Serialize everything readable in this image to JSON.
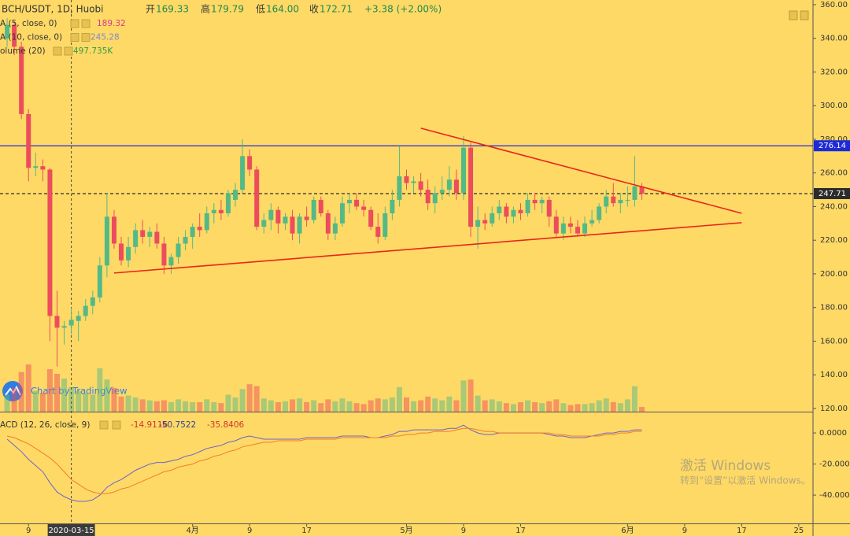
{
  "chart_data": {
    "type": "candlestick",
    "title": "BCH/USDT, 1D, Huobi",
    "ohlc_legend": [
      {
        "label": "开",
        "value": "169.33"
      },
      {
        "label": "高",
        "value": "179.79"
      },
      {
        "label": "低",
        "value": "164.00"
      },
      {
        "label": "收",
        "value": "172.71"
      }
    ],
    "change": "+3.38 (+2.00%)",
    "indicators": [
      {
        "name": "A (5, close, 0)",
        "value": "189.32",
        "color": "#d63c84"
      },
      {
        "name": "A (10, close, 0)",
        "value": "245.28",
        "color": "#7e8bc9"
      },
      {
        "name": "olume (20)",
        "value": "497.735K",
        "color": "#2ea043"
      }
    ],
    "macd_legend": {
      "name": "ACD (12, 26, close, 9)",
      "values": [
        "-14.9116",
        "-50.7522",
        "-35.8406"
      ],
      "colors": [
        "#d0342c",
        "#2c3e9c",
        "#d0342c"
      ]
    },
    "x": [
      "2020-03-06",
      "2020-03-07",
      "2020-03-08",
      "2020-03-09",
      "2020-03-10",
      "2020-03-11",
      "2020-03-12",
      "2020-03-13",
      "2020-03-14",
      "2020-03-15",
      "2020-03-16",
      "2020-03-17",
      "2020-03-18",
      "2020-03-19",
      "2020-03-20",
      "2020-03-21",
      "2020-03-22",
      "2020-03-23",
      "2020-03-24",
      "2020-03-25",
      "2020-03-26",
      "2020-03-27",
      "2020-03-28",
      "2020-03-29",
      "2020-03-30",
      "2020-03-31",
      "2020-04-01",
      "2020-04-02",
      "2020-04-03",
      "2020-04-04",
      "2020-04-05",
      "2020-04-06",
      "2020-04-07",
      "2020-04-08",
      "2020-04-09",
      "2020-04-10",
      "2020-04-11",
      "2020-04-12",
      "2020-04-13",
      "2020-04-14",
      "2020-04-15",
      "2020-04-16",
      "2020-04-17",
      "2020-04-18",
      "2020-04-19",
      "2020-04-20",
      "2020-04-21",
      "2020-04-22",
      "2020-04-23",
      "2020-04-24",
      "2020-04-25",
      "2020-04-26",
      "2020-04-27",
      "2020-04-28",
      "2020-04-29",
      "2020-04-30",
      "2020-05-01",
      "2020-05-02",
      "2020-05-03",
      "2020-05-04",
      "2020-05-05",
      "2020-05-06",
      "2020-05-07",
      "2020-05-08",
      "2020-05-09",
      "2020-05-10",
      "2020-05-11",
      "2020-05-12",
      "2020-05-13",
      "2020-05-14",
      "2020-05-15",
      "2020-05-16",
      "2020-05-17",
      "2020-05-18",
      "2020-05-19",
      "2020-05-20",
      "2020-05-21",
      "2020-05-22",
      "2020-05-23",
      "2020-05-24",
      "2020-05-25",
      "2020-05-26",
      "2020-05-27",
      "2020-05-28",
      "2020-05-29",
      "2020-05-30",
      "2020-05-31",
      "2020-06-01",
      "2020-06-02",
      "2020-06-03"
    ],
    "open": [
      340,
      348,
      335,
      295,
      263,
      264,
      262,
      175,
      168,
      169.33,
      172,
      175,
      181,
      186,
      205,
      234,
      218,
      208,
      216,
      226,
      222,
      225,
      218,
      205,
      210,
      218,
      222,
      228,
      226,
      236,
      238,
      236,
      244,
      250,
      270,
      262,
      228,
      232,
      238,
      230,
      234,
      224,
      234,
      232,
      244,
      236,
      224,
      230,
      242,
      244,
      240,
      238,
      228,
      222,
      236,
      244,
      258,
      254,
      255,
      250,
      242,
      248,
      250,
      256,
      248,
      275,
      228,
      232,
      230,
      236,
      240,
      234,
      238,
      236,
      244,
      242,
      244,
      234,
      224,
      230,
      228,
      224,
      230,
      232,
      240,
      246,
      242,
      244,
      244,
      252
    ],
    "high": [
      352,
      350,
      338,
      298,
      272,
      268,
      263,
      190,
      172,
      179.79,
      178,
      185,
      190,
      210,
      248,
      238,
      222,
      222,
      230,
      232,
      228,
      230,
      222,
      212,
      222,
      226,
      230,
      236,
      240,
      242,
      244,
      250,
      254,
      280,
      274,
      264,
      236,
      242,
      240,
      236,
      238,
      236,
      240,
      246,
      246,
      238,
      234,
      246,
      248,
      248,
      244,
      240,
      236,
      240,
      250,
      276,
      262,
      258,
      260,
      256,
      252,
      258,
      264,
      262,
      282,
      278,
      240,
      236,
      240,
      244,
      242,
      240,
      242,
      248,
      248,
      246,
      246,
      238,
      234,
      234,
      232,
      234,
      238,
      242,
      250,
      254,
      248,
      252,
      270,
      254
    ],
    "low": [
      335,
      330,
      292,
      255,
      258,
      255,
      160,
      145,
      158,
      164.0,
      160,
      172,
      176,
      183,
      198,
      215,
      205,
      204,
      212,
      218,
      216,
      215,
      200,
      200,
      206,
      214,
      215,
      222,
      224,
      230,
      232,
      234,
      240,
      248,
      258,
      226,
      224,
      226,
      224,
      226,
      220,
      218,
      228,
      230,
      234,
      220,
      220,
      228,
      236,
      238,
      234,
      226,
      218,
      220,
      232,
      240,
      250,
      248,
      246,
      238,
      236,
      244,
      246,
      244,
      244,
      222,
      215,
      226,
      228,
      232,
      230,
      230,
      232,
      234,
      238,
      236,
      228,
      222,
      220,
      224,
      222,
      222,
      228,
      230,
      236,
      240,
      236,
      240,
      240,
      244
    ],
    "close": [
      348,
      335,
      295,
      263,
      264,
      262,
      175,
      168,
      169,
      172.71,
      175,
      181,
      186,
      205,
      234,
      218,
      208,
      216,
      226,
      222,
      225,
      218,
      205,
      210,
      218,
      222,
      228,
      226,
      236,
      238,
      236,
      248,
      250,
      270,
      262,
      228,
      232,
      238,
      230,
      234,
      224,
      234,
      232,
      244,
      236,
      224,
      230,
      242,
      244,
      240,
      238,
      228,
      222,
      236,
      244,
      258,
      254,
      255,
      250,
      242,
      248,
      250,
      256,
      248,
      275,
      228,
      232,
      230,
      236,
      240,
      234,
      238,
      236,
      244,
      242,
      244,
      234,
      224,
      230,
      228,
      224,
      230,
      232,
      240,
      246,
      242,
      244,
      244,
      252,
      247.71
    ],
    "volume": [
      1800,
      2500,
      4200,
      5000,
      2200,
      2000,
      4500,
      4000,
      3500,
      2600,
      2200,
      2000,
      1800,
      4600,
      3400,
      2500,
      1600,
      1700,
      1500,
      1300,
      1200,
      1100,
      1200,
      1000,
      1300,
      1100,
      1000,
      1000,
      1300,
      1000,
      900,
      1800,
      1500,
      2400,
      2900,
      2700,
      1400,
      1200,
      1000,
      1100,
      1300,
      1400,
      1000,
      1200,
      900,
      1300,
      1100,
      1400,
      1100,
      900,
      800,
      1200,
      1400,
      1300,
      1500,
      2600,
      1500,
      1100,
      1200,
      1600,
      1400,
      1200,
      1600,
      1200,
      3300,
      3400,
      1700,
      1200,
      1300,
      1100,
      900,
      800,
      1000,
      1200,
      1000,
      900,
      1100,
      1300,
      900,
      700,
      800,
      800,
      900,
      1200,
      1400,
      1000,
      900,
      1300,
      2700,
      497.735
    ],
    "macd": [
      -4,
      -8,
      -12,
      -17,
      -21,
      -25,
      -32,
      -38,
      -41,
      -43,
      -44,
      -44,
      -43,
      -40,
      -35,
      -32,
      -30,
      -27,
      -24,
      -22,
      -20,
      -19,
      -19,
      -18,
      -17,
      -15,
      -14,
      -12,
      -10,
      -9,
      -8,
      -6,
      -5,
      -3,
      -2,
      -3,
      -4,
      -4,
      -4,
      -4,
      -4,
      -4,
      -3,
      -3,
      -3,
      -3,
      -3,
      -2,
      -2,
      -2,
      -2,
      -3,
      -3,
      -2,
      -1,
      1,
      1,
      2,
      2,
      2,
      2,
      2,
      3,
      3,
      5,
      2,
      0,
      -1,
      -1,
      0,
      0,
      0,
      0,
      0,
      0,
      0,
      -1,
      -2,
      -2,
      -3,
      -3,
      -3,
      -2,
      -1,
      0,
      0,
      1,
      1,
      2,
      2
    ],
    "signal": [
      -2,
      -3,
      -5,
      -7,
      -10,
      -13,
      -16,
      -20,
      -25,
      -30,
      -33,
      -36,
      -38,
      -39,
      -39,
      -38,
      -36,
      -35,
      -33,
      -31,
      -29,
      -27,
      -25,
      -24,
      -22,
      -21,
      -20,
      -18,
      -17,
      -15,
      -14,
      -12,
      -11,
      -9,
      -8,
      -7,
      -6,
      -6,
      -5,
      -5,
      -5,
      -5,
      -4,
      -4,
      -4,
      -4,
      -4,
      -3,
      -3,
      -3,
      -3,
      -3,
      -3,
      -3,
      -2,
      -2,
      -1,
      -1,
      0,
      0,
      1,
      1,
      1,
      2,
      3,
      3,
      2,
      1,
      1,
      0,
      0,
      0,
      0,
      0,
      0,
      0,
      0,
      -1,
      -1,
      -2,
      -2,
      -2,
      -2,
      -2,
      -1,
      -1,
      0,
      0,
      1,
      1
    ],
    "up_color": "#53b987",
    "down_color": "#eb4d5c",
    "macd_color": "#6b63c9",
    "signal_color": "#f57c2a",
    "xlim": [
      "2020-03-05",
      "2020-06-27"
    ],
    "xticks": [
      {
        "value": "2020-03-09",
        "label": "9"
      },
      {
        "value": "2020-04-01",
        "label": "4月"
      },
      {
        "value": "2020-04-09",
        "label": "9"
      },
      {
        "value": "2020-04-17",
        "label": "17"
      },
      {
        "value": "2020-05-01",
        "label": "5月"
      },
      {
        "value": "2020-05-09",
        "label": "9"
      },
      {
        "value": "2020-05-17",
        "label": "17"
      },
      {
        "value": "2020-06-01",
        "label": "6月"
      },
      {
        "value": "2020-06-09",
        "label": "9"
      },
      {
        "value": "2020-06-17",
        "label": "17"
      },
      {
        "value": "2020-06-25",
        "label": "25"
      }
    ],
    "ylim": [
      118.1,
      362.8
    ],
    "yticks": [
      {
        "value": 120,
        "label": "120.00"
      },
      {
        "value": 140,
        "label": "140.00"
      },
      {
        "value": 160,
        "label": "160.00"
      },
      {
        "value": 180,
        "label": "180.00"
      },
      {
        "value": 200,
        "label": "200.00"
      },
      {
        "value": 220,
        "label": "220.00"
      },
      {
        "value": 240,
        "label": "240.00"
      },
      {
        "value": 260,
        "label": "260.00"
      },
      {
        "value": 280,
        "label": "280.00"
      },
      {
        "value": 300,
        "label": "300.00"
      },
      {
        "value": 320,
        "label": "320.00"
      },
      {
        "value": 340,
        "label": "340.00"
      },
      {
        "value": 360,
        "label": "360.00"
      }
    ],
    "volume_lim": [
      0,
      6000
    ],
    "y2lim": [
      -58.2,
      12.7
    ],
    "y2ticks": [
      {
        "value": 0,
        "label": "0.0000"
      },
      {
        "value": -20,
        "label": "-20.0000"
      },
      {
        "value": -40,
        "label": "-40.0000"
      }
    ],
    "hlines": [
      {
        "value": 276.14,
        "color": "#1e2ad6",
        "dashed": false
      },
      {
        "value": 247.71,
        "color": "#2b2b2b",
        "dashed": true
      }
    ],
    "trendlines": [
      {
        "color": "#e8261c",
        "points": [
          {
            "x": "2020-05-03",
            "y": 286.6
          },
          {
            "x": "2020-06-17",
            "y": 236
          }
        ]
      },
      {
        "color": "#e8261c",
        "points": [
          {
            "x": "2020-03-21",
            "y": 200.5
          },
          {
            "x": "2020-06-17",
            "y": 230.4
          }
        ]
      }
    ],
    "crosshair": "2020-03-15",
    "watermark": "Chart by TradingView"
  },
  "overlay": {
    "activate_title": "激活 Windows",
    "activate_sub": "转到“设置”以激活 Windows。"
  }
}
